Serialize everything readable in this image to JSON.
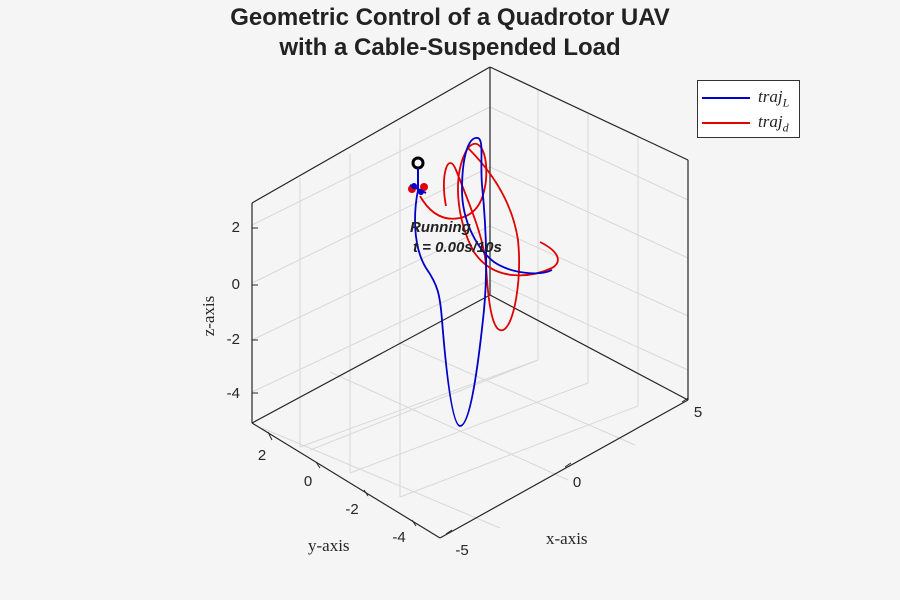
{
  "chart_data": {
    "type": "line",
    "title_line1": "Geometric Control of a Quadrotor UAV",
    "title_line2": "with a Cable-Suspended Load",
    "xlabel": "x-axis",
    "ylabel": "y-axis",
    "zlabel": "z-axis",
    "x_ticks": [
      "-5",
      "0",
      "5"
    ],
    "y_ticks": [
      "2",
      "0",
      "-2",
      "-4"
    ],
    "z_ticks": [
      "2",
      "0",
      "-2",
      "-4"
    ],
    "grid": true,
    "legend_position": "top-right",
    "annotation_line1": "Running",
    "annotation_line2": "t = 0.00s/10s",
    "series": [
      {
        "name": "traj",
        "subscript": "L",
        "color": "#0000c8"
      },
      {
        "name": "traj",
        "subscript": "d",
        "color": "#e00000"
      }
    ]
  }
}
